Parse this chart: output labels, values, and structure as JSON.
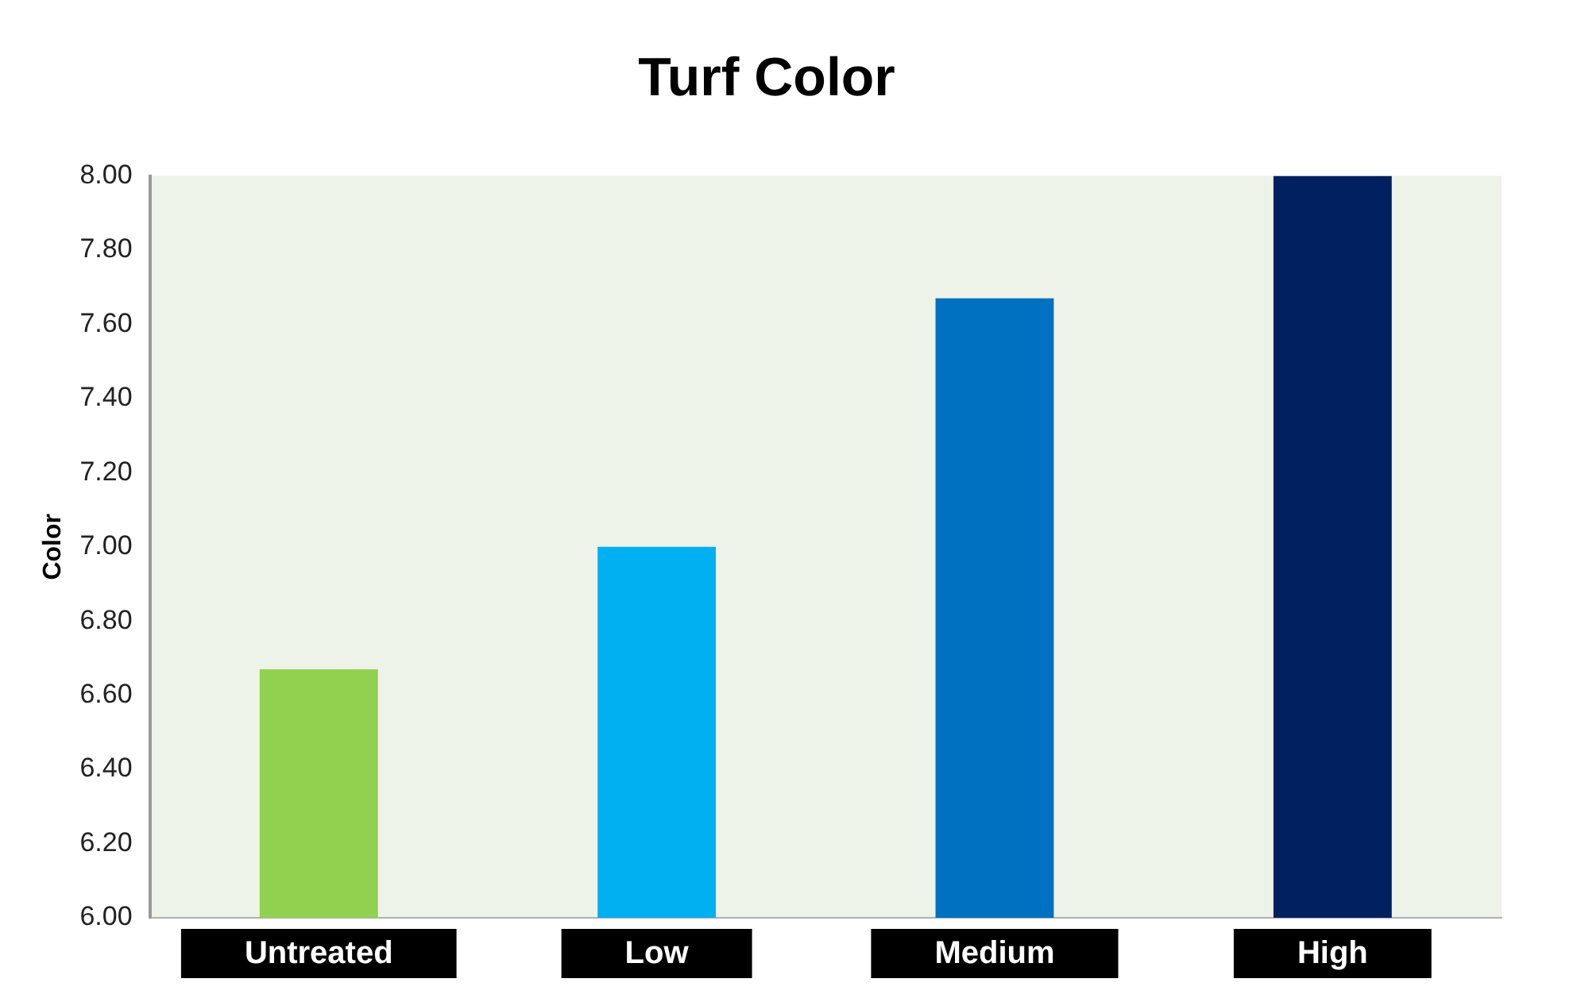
{
  "chart_data": {
    "type": "bar",
    "title": "Turf Color",
    "ylabel": "Color",
    "categories": [
      "Untreated",
      "Low",
      "Medium",
      "High"
    ],
    "values": [
      6.67,
      7.0,
      7.67,
      8.0
    ],
    "colors": [
      "#92d050",
      "#00b0f0",
      "#0070c0",
      "#002060"
    ],
    "ylim": [
      6,
      8
    ],
    "yticks": [
      {
        "value": 6,
        "label": "6.00"
      },
      {
        "value": 6.2,
        "label": "6.20"
      },
      {
        "value": 6.4,
        "label": "6.40"
      },
      {
        "value": 6.6,
        "label": "6.60"
      },
      {
        "value": 6.8,
        "label": "6.80"
      },
      {
        "value": 7,
        "label": "7.00"
      },
      {
        "value": 7.2,
        "label": "7.20"
      },
      {
        "value": 7.4,
        "label": "7.40"
      },
      {
        "value": 7.6,
        "label": "7.60"
      },
      {
        "value": 7.8,
        "label": "7.80"
      },
      {
        "value": 8,
        "label": "8.00"
      }
    ],
    "grid": false,
    "legend": false
  }
}
